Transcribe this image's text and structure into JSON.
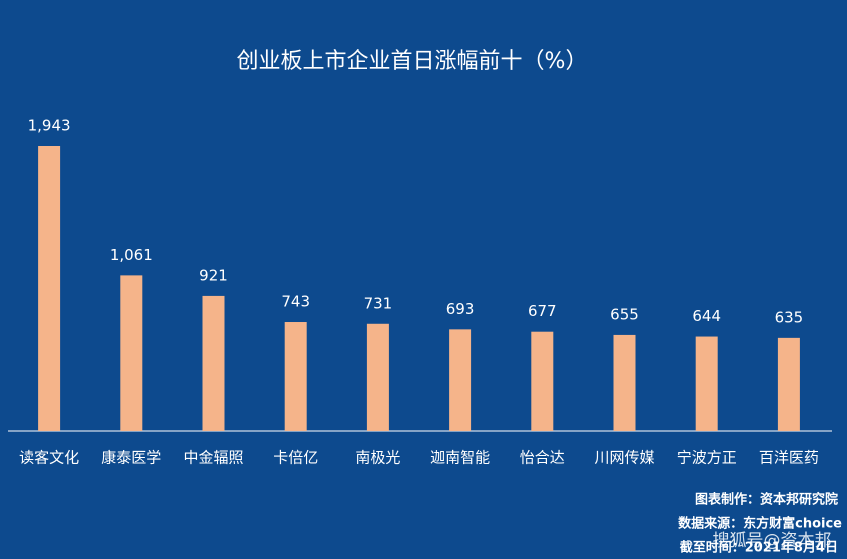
{
  "chart_data": {
    "type": "bar",
    "title": "创业板上市企业首日涨幅前十（%）",
    "categories": [
      "读客文化",
      "康泰医学",
      "中金辐照",
      "卡倍亿",
      "南极光",
      "迦南智能",
      "怡合达",
      "川网传媒",
      "宁波方正",
      "百洋医药"
    ],
    "values": [
      1943,
      1061,
      921,
      743,
      731,
      693,
      677,
      655,
      644,
      635
    ],
    "value_labels": [
      "1,943",
      "1,061",
      "921",
      "743",
      "731",
      "693",
      "677",
      "655",
      "644",
      "635"
    ],
    "color": "#f5b48a",
    "annotations": [
      "图表制作：资本邦研究院",
      "数据来源：东方财富choice",
      "截至时间：2021年8月4日"
    ],
    "watermark": "搜狐号@资本邦"
  }
}
